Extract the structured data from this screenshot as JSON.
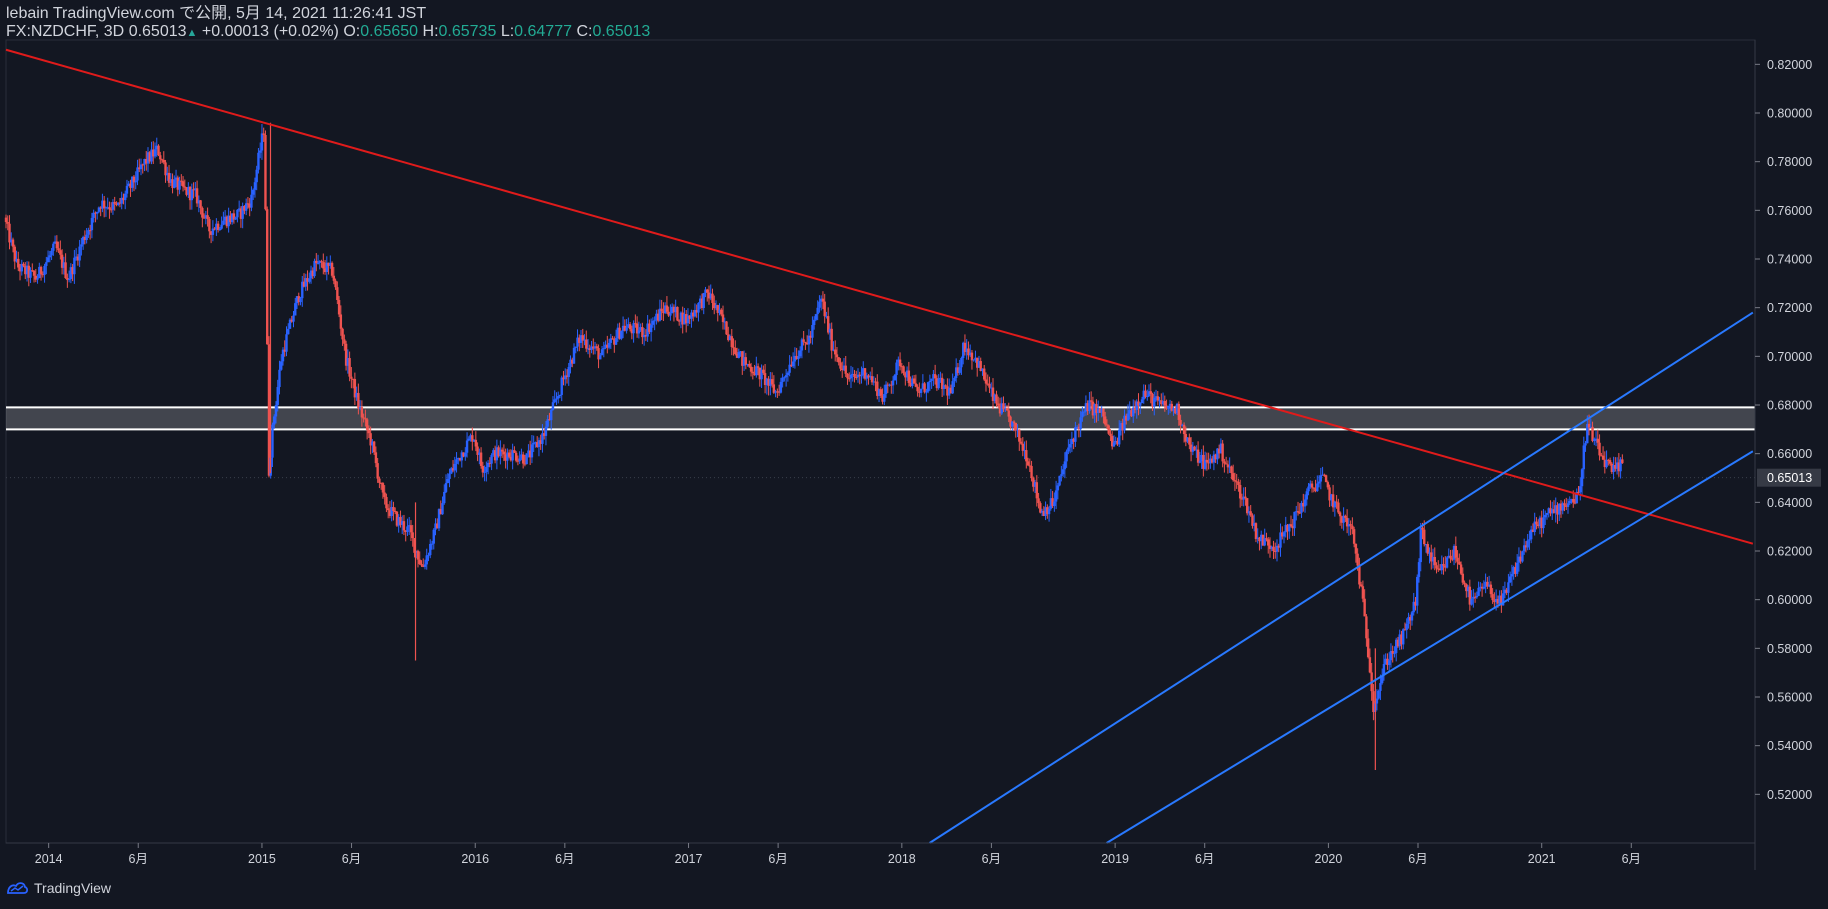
{
  "header": {
    "line1": "lebain TradingView.com で公開, 5月 14, 2021 11:26:41 JST",
    "symbol": "FX:NZDCHF, 3D",
    "last": "0.65013",
    "arrow": "▲",
    "change": "+0.00013 (+0.02%)",
    "o_label": "O:",
    "o": "0.65650",
    "h_label": "H:",
    "h": "0.65735",
    "l_label": "L:",
    "l": "0.64777",
    "c_label": "C:",
    "c": "0.65013"
  },
  "footer": {
    "brand": "TradingView"
  },
  "colors": {
    "background": "#131722",
    "up": "#2962ff",
    "down": "#ef5350",
    "trendline_red": "#e01b1b",
    "channel_blue": "#2979ff",
    "zone": "#ffffff"
  },
  "chart_data": {
    "type": "candlestick",
    "symbol": "FX:NZDCHF",
    "interval": "3D",
    "y_range": [
      0.5,
      0.83
    ],
    "x_range": [
      2013.8,
      2022.0
    ],
    "y_ticks": [
      "0.82000",
      "0.80000",
      "0.78000",
      "0.76000",
      "0.74000",
      "0.72000",
      "0.70000",
      "0.68000",
      "0.66000",
      "0.64000",
      "0.62000",
      "0.60000",
      "0.58000",
      "0.56000",
      "0.54000",
      "0.52000"
    ],
    "x_ticks": [
      {
        "t": 2014.0,
        "label": "2014"
      },
      {
        "t": 2014.42,
        "label": "6月"
      },
      {
        "t": 2015.0,
        "label": "2015"
      },
      {
        "t": 2015.42,
        "label": "6月"
      },
      {
        "t": 2016.0,
        "label": "2016"
      },
      {
        "t": 2016.42,
        "label": "6月"
      },
      {
        "t": 2017.0,
        "label": "2017"
      },
      {
        "t": 2017.42,
        "label": "6月"
      },
      {
        "t": 2018.0,
        "label": "2018"
      },
      {
        "t": 2018.42,
        "label": "6月"
      },
      {
        "t": 2019.0,
        "label": "2019"
      },
      {
        "t": 2019.42,
        "label": "6月"
      },
      {
        "t": 2020.0,
        "label": "2020"
      },
      {
        "t": 2020.42,
        "label": "6月"
      },
      {
        "t": 2021.0,
        "label": "2021"
      },
      {
        "t": 2021.42,
        "label": "6月"
      }
    ],
    "last_price": "0.65013",
    "price_path": [
      [
        2013.8,
        0.757
      ],
      [
        2013.86,
        0.737
      ],
      [
        2013.95,
        0.732
      ],
      [
        2014.04,
        0.745
      ],
      [
        2014.1,
        0.732
      ],
      [
        2014.17,
        0.748
      ],
      [
        2014.25,
        0.763
      ],
      [
        2014.33,
        0.761
      ],
      [
        2014.4,
        0.771
      ],
      [
        2014.46,
        0.78
      ],
      [
        2014.52,
        0.785
      ],
      [
        2014.58,
        0.772
      ],
      [
        2014.65,
        0.768
      ],
      [
        2014.7,
        0.766
      ],
      [
        2014.76,
        0.752
      ],
      [
        2014.83,
        0.756
      ],
      [
        2014.9,
        0.758
      ],
      [
        2014.96,
        0.765
      ],
      [
        2015.02,
        0.795
      ],
      [
        2015.04,
        0.652
      ],
      [
        2015.06,
        0.672
      ],
      [
        2015.1,
        0.7
      ],
      [
        2015.18,
        0.725
      ],
      [
        2015.26,
        0.738
      ],
      [
        2015.34,
        0.735
      ],
      [
        2015.4,
        0.7
      ],
      [
        2015.46,
        0.68
      ],
      [
        2015.52,
        0.665
      ],
      [
        2015.58,
        0.64
      ],
      [
        2015.64,
        0.633
      ],
      [
        2015.7,
        0.628
      ],
      [
        2015.76,
        0.613
      ],
      [
        2015.82,
        0.628
      ],
      [
        2015.88,
        0.65
      ],
      [
        2015.94,
        0.66
      ],
      [
        2016.0,
        0.668
      ],
      [
        2016.04,
        0.654
      ],
      [
        2016.1,
        0.66
      ],
      [
        2016.18,
        0.66
      ],
      [
        2016.25,
        0.658
      ],
      [
        2016.33,
        0.668
      ],
      [
        2016.42,
        0.69
      ],
      [
        2016.5,
        0.708
      ],
      [
        2016.6,
        0.7
      ],
      [
        2016.7,
        0.712
      ],
      [
        2016.8,
        0.71
      ],
      [
        2016.9,
        0.72
      ],
      [
        2017.0,
        0.715
      ],
      [
        2017.1,
        0.726
      ],
      [
        2017.18,
        0.712
      ],
      [
        2017.26,
        0.698
      ],
      [
        2017.34,
        0.693
      ],
      [
        2017.42,
        0.685
      ],
      [
        2017.5,
        0.7
      ],
      [
        2017.58,
        0.708
      ],
      [
        2017.63,
        0.724
      ],
      [
        2017.68,
        0.705
      ],
      [
        2017.76,
        0.69
      ],
      [
        2017.84,
        0.694
      ],
      [
        2017.92,
        0.683
      ],
      [
        2018.0,
        0.698
      ],
      [
        2018.08,
        0.685
      ],
      [
        2018.16,
        0.69
      ],
      [
        2018.24,
        0.685
      ],
      [
        2018.3,
        0.705
      ],
      [
        2018.36,
        0.698
      ],
      [
        2018.44,
        0.682
      ],
      [
        2018.52,
        0.673
      ],
      [
        2018.6,
        0.658
      ],
      [
        2018.66,
        0.636
      ],
      [
        2018.72,
        0.64
      ],
      [
        2018.8,
        0.665
      ],
      [
        2018.88,
        0.68
      ],
      [
        2018.95,
        0.676
      ],
      [
        2019.0,
        0.662
      ],
      [
        2019.06,
        0.675
      ],
      [
        2019.14,
        0.685
      ],
      [
        2019.22,
        0.68
      ],
      [
        2019.3,
        0.678
      ],
      [
        2019.36,
        0.662
      ],
      [
        2019.44,
        0.655
      ],
      [
        2019.5,
        0.662
      ],
      [
        2019.56,
        0.65
      ],
      [
        2019.62,
        0.64
      ],
      [
        2019.68,
        0.625
      ],
      [
        2019.76,
        0.622
      ],
      [
        2019.84,
        0.632
      ],
      [
        2019.92,
        0.645
      ],
      [
        2019.98,
        0.65
      ],
      [
        2020.04,
        0.638
      ],
      [
        2020.12,
        0.628
      ],
      [
        2020.16,
        0.605
      ],
      [
        2020.2,
        0.575
      ],
      [
        2020.22,
        0.556
      ],
      [
        2020.28,
        0.575
      ],
      [
        2020.36,
        0.585
      ],
      [
        2020.42,
        0.6
      ],
      [
        2020.44,
        0.628
      ],
      [
        2020.52,
        0.61
      ],
      [
        2020.6,
        0.62
      ],
      [
        2020.68,
        0.598
      ],
      [
        2020.74,
        0.606
      ],
      [
        2020.82,
        0.598
      ],
      [
        2020.88,
        0.612
      ],
      [
        2020.96,
        0.628
      ],
      [
        2021.04,
        0.635
      ],
      [
        2021.12,
        0.64
      ],
      [
        2021.18,
        0.642
      ],
      [
        2021.22,
        0.672
      ],
      [
        2021.28,
        0.66
      ],
      [
        2021.34,
        0.652
      ],
      [
        2021.38,
        0.655
      ]
    ],
    "drawings": {
      "red_trendline": {
        "p1": [
          2013.8,
          0.826
        ],
        "p2": [
          2021.99,
          0.623
        ]
      },
      "support_zone": {
        "top": 0.679,
        "bottom": 0.67
      },
      "channel_upper": {
        "p1": [
          2018.13,
          0.5
        ],
        "p2": [
          2021.99,
          0.718
        ]
      },
      "channel_lower": {
        "p1": [
          2018.96,
          0.5
        ],
        "p2": [
          2021.99,
          0.661
        ]
      }
    }
  }
}
